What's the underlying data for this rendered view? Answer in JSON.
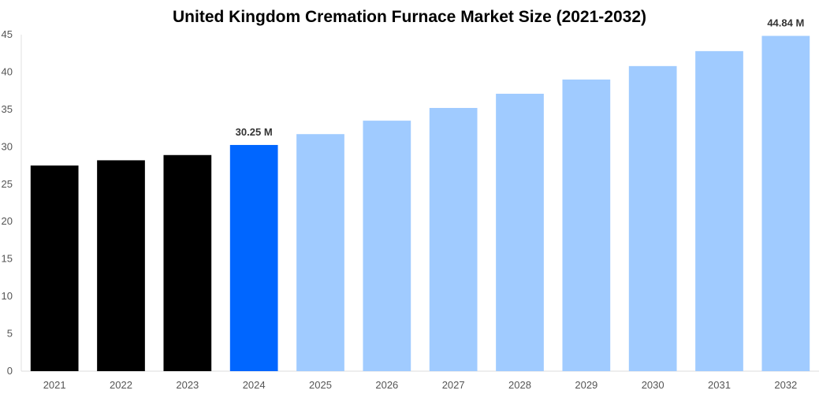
{
  "chart_data": {
    "type": "bar",
    "title": "United Kingdom Cremation Furnace Market Size (2021-2032)",
    "xlabel": "",
    "ylabel": "",
    "categories": [
      "2021",
      "2022",
      "2023",
      "2024",
      "2025",
      "2026",
      "2027",
      "2028",
      "2029",
      "2030",
      "2031",
      "2032"
    ],
    "values": [
      27.5,
      28.2,
      28.9,
      30.25,
      31.7,
      33.5,
      35.2,
      37.1,
      39.0,
      40.8,
      42.8,
      44.84
    ],
    "ylim": [
      0,
      45
    ],
    "yticks": [
      "0",
      "5",
      "10",
      "15",
      "20",
      "25",
      "30",
      "35",
      "40",
      "45"
    ],
    "bar_colors": [
      "#000000",
      "#000000",
      "#000000",
      "#0066ff",
      "#a0cbff",
      "#a0cbff",
      "#a0cbff",
      "#a0cbff",
      "#a0cbff",
      "#a0cbff",
      "#a0cbff",
      "#a0cbff"
    ],
    "data_labels": [
      {
        "index": 3,
        "text": "30.25 M"
      },
      {
        "index": 11,
        "text": "44.84 M"
      }
    ],
    "grid": false,
    "legend": "none"
  }
}
